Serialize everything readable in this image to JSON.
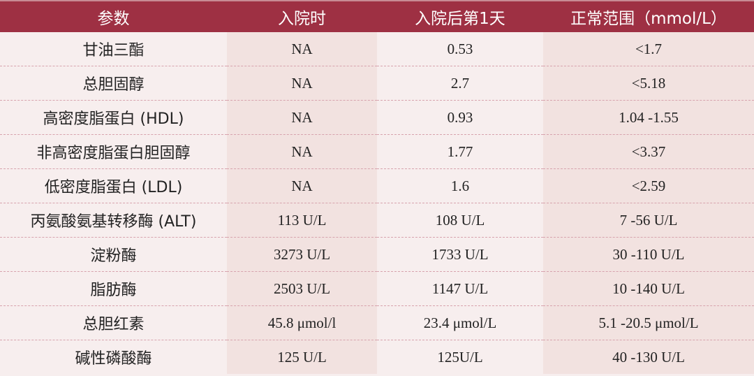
{
  "header_color": "#9e3043",
  "columns": [
    "参数",
    "入院时",
    "入院后第1天",
    "正常范围（mmol/L）"
  ],
  "rows": [
    [
      "甘油三酯",
      "NA",
      "0.53",
      "<1.7"
    ],
    [
      "总胆固醇",
      "NA",
      "2.7",
      "<5.18"
    ],
    [
      "高密度脂蛋白 (HDL)",
      "NA",
      "0.93",
      "1.04 -1.55"
    ],
    [
      "非高密度脂蛋白胆固醇",
      "NA",
      "1.77",
      "<3.37"
    ],
    [
      "低密度脂蛋白 (LDL)",
      "NA",
      "1.6",
      "<2.59"
    ],
    [
      "丙氨酸氨基转移酶 (ALT)",
      "113 U/L",
      "108 U/L",
      "7 -56 U/L"
    ],
    [
      "淀粉酶",
      "3273 U/L",
      "1733 U/L",
      "30 -110 U/L"
    ],
    [
      "脂肪酶",
      "2503 U/L",
      "1147 U/L",
      "10 -140 U/L"
    ],
    [
      "总胆红素",
      "45.8 μmol/l",
      "23.4 μmol/L",
      "5.1 -20.5 μmol/L"
    ],
    [
      "碱性磷酸酶",
      "125 U/L",
      "125U/L",
      "40 -130 U/L"
    ]
  ]
}
